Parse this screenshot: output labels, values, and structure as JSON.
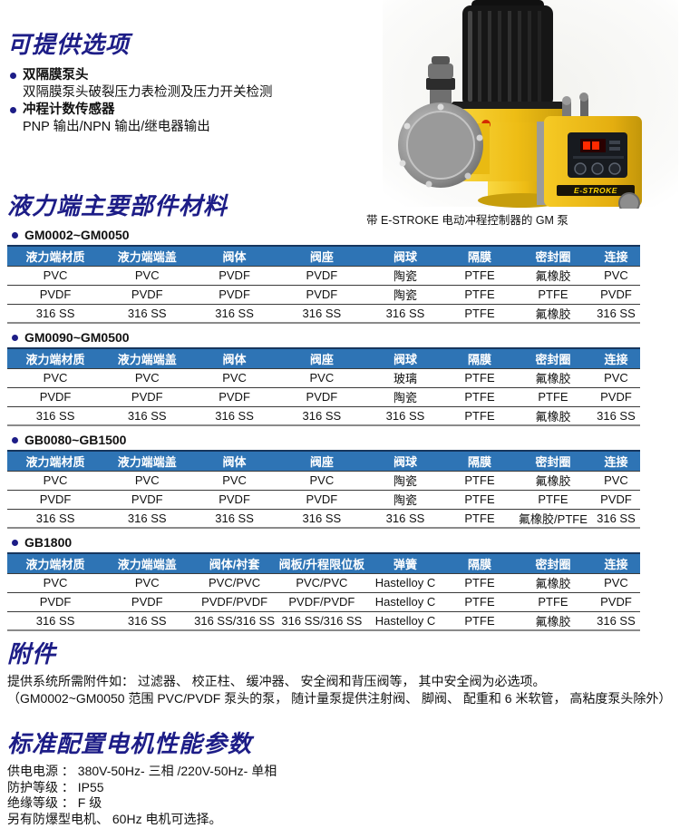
{
  "colors": {
    "title_navy": "#1d1d87",
    "table_header_blue": "#2e74b5",
    "pump_yellow": "#f2c41d",
    "led_red": "#ff2a00"
  },
  "options_section": {
    "title": "可提供选项",
    "items": [
      {
        "label": "双隔膜泵头",
        "desc": "双隔膜泵头破裂压力表检测及压力开关检测"
      },
      {
        "label": "冲程计数传感器",
        "desc": "PNP 输出/NPN 输出/继电器输出"
      }
    ]
  },
  "pump_figure": {
    "caption": "带 E-STROKE 电动冲程控制器的 GM 泵",
    "brand_label": "E-STROKE"
  },
  "materials_section": {
    "title": "液力端主要部件材料",
    "tables": [
      {
        "model": "GM0002~GM0050",
        "headers": [
          "液力端材质",
          "液力端端盖",
          "阀体",
          "阀座",
          "阀球",
          "隔膜",
          "密封圈",
          "连接"
        ],
        "rows": [
          [
            "PVC",
            "PVC",
            "PVDF",
            "PVDF",
            "陶瓷",
            "PTFE",
            "氟橡胶",
            "PVC"
          ],
          [
            "PVDF",
            "PVDF",
            "PVDF",
            "PVDF",
            "陶瓷",
            "PTFE",
            "PTFE",
            "PVDF"
          ],
          [
            "316 SS",
            "316 SS",
            "316 SS",
            "316 SS",
            "316 SS",
            "PTFE",
            "氟橡胶",
            "316 SS"
          ]
        ]
      },
      {
        "model": "GM0090~GM0500",
        "headers": [
          "液力端材质",
          "液力端端盖",
          "阀体",
          "阀座",
          "阀球",
          "隔膜",
          "密封圈",
          "连接"
        ],
        "rows": [
          [
            "PVC",
            "PVC",
            "PVC",
            "PVC",
            "玻璃",
            "PTFE",
            "氟橡胶",
            "PVC"
          ],
          [
            "PVDF",
            "PVDF",
            "PVDF",
            "PVDF",
            "陶瓷",
            "PTFE",
            "PTFE",
            "PVDF"
          ],
          [
            "316 SS",
            "316 SS",
            "316 SS",
            "316 SS",
            "316 SS",
            "PTFE",
            "氟橡胶",
            "316 SS"
          ]
        ]
      },
      {
        "model": "GB0080~GB1500",
        "headers": [
          "液力端材质",
          "液力端端盖",
          "阀体",
          "阀座",
          "阀球",
          "隔膜",
          "密封圈",
          "连接"
        ],
        "rows": [
          [
            "PVC",
            "PVC",
            "PVC",
            "PVC",
            "陶瓷",
            "PTFE",
            "氟橡胶",
            "PVC"
          ],
          [
            "PVDF",
            "PVDF",
            "PVDF",
            "PVDF",
            "陶瓷",
            "PTFE",
            "PTFE",
            "PVDF"
          ],
          [
            "316 SS",
            "316 SS",
            "316 SS",
            "316 SS",
            "316 SS",
            "PTFE",
            "氟橡胶/PTFE",
            "316 SS"
          ]
        ]
      },
      {
        "model": "GB1800",
        "headers": [
          "液力端材质",
          "液力端端盖",
          "阀体/衬套",
          "阀板/升程限位板",
          "弹簧",
          "隔膜",
          "密封圈",
          "连接"
        ],
        "rows": [
          [
            "PVC",
            "PVC",
            "PVC/PVC",
            "PVC/PVC",
            "Hastelloy C",
            "PTFE",
            "氟橡胶",
            "PVC"
          ],
          [
            "PVDF",
            "PVDF",
            "PVDF/PVDF",
            "PVDF/PVDF",
            "Hastelloy C",
            "PTFE",
            "PTFE",
            "PVDF"
          ],
          [
            "316 SS",
            "316 SS",
            "316 SS/316 SS",
            "316 SS/316 SS",
            "Hastelloy C",
            "PTFE",
            "氟橡胶",
            "316 SS"
          ]
        ]
      }
    ]
  },
  "accessories_section": {
    "title": "附件",
    "lines": [
      "提供系统所需附件如： 过滤器、 校正柱、 缓冲器、 安全阀和背压阀等， 其中安全阀为必选项。",
      "（GM0002~GM0050 范围 PVC/PVDF 泵头的泵， 随计量泵提供注射阀、 脚阀、 配重和 6 米软管， 高粘度泵头除外）"
    ]
  },
  "motor_section": {
    "title": "标准配置电机性能参数",
    "lines": [
      "供电电源 ：  380V-50Hz- 三相 /220V-50Hz- 单相",
      "防护等级 ：  IP55",
      "绝缘等级 ：  F 级",
      "另有防爆型电机、 60Hz 电机可选择。"
    ]
  }
}
